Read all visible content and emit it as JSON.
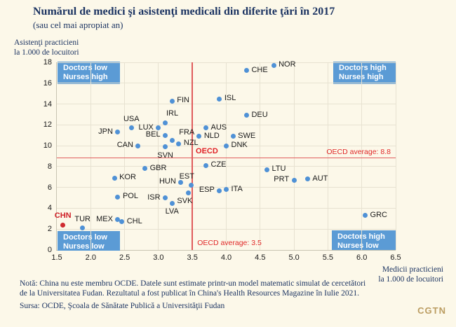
{
  "header": {
    "title": "Numărul de medici şi asistenţi medicali din diferite ţări în 2017",
    "subtitle": "(sau cel mai apropiat an)"
  },
  "axes": {
    "y_title_line1": "Asistenţi practicieni",
    "y_title_line2": "la 1.000 de locuitori",
    "x_title_line1": "Medicii practicieni",
    "x_title_line2": "la 1.000 de locuitori"
  },
  "footer": {
    "note_line1": "Notă: China nu este membru OCDE. Datele sunt estimate printr-un model matematic simulat de cercetători",
    "note_line2": "de la Universitatea Fudan. Rezultatul a fost publicat în China's Health Resources Magazine în Iulie 2021.",
    "source": "Sursa: OCDE, Şcoala de Sănătate Publică a Universităţii Fudan",
    "logo": "CGTN"
  },
  "colors": {
    "background": "#fcf8e9",
    "point_blue": "#4f91d6",
    "quadrant_blue": "#5b9bd5",
    "highlight_red": "#cf2b31",
    "reference_red": "#e05c5c",
    "title_navy": "#1c3462",
    "gold": "#bb9d62",
    "grid": "#e7e2d1"
  },
  "chart_data": {
    "type": "scatter",
    "title": "Numărul de medici şi asistenţi medicali din diferite ţări în 2017 (sau cel mai apropiat an)",
    "xlabel": "Medicii practicieni la 1.000 de locuitori",
    "ylabel": "Asistenţi practicieni la 1.000 de locuitori",
    "xlim": [
      1.5,
      6.5
    ],
    "ylim": [
      0,
      18
    ],
    "x_ticks": [
      1.5,
      2.0,
      2.5,
      3.0,
      3.5,
      4.0,
      4.5,
      5.0,
      5.5,
      6.0,
      6.5
    ],
    "y_ticks": [
      0,
      2,
      4,
      6,
      8,
      10,
      12,
      14,
      16,
      18
    ],
    "grid": true,
    "legend": "none",
    "reference_lines": {
      "h": {
        "value": 8.8,
        "label": "OECD average: 8.8"
      },
      "v": {
        "value": 3.5,
        "label": "OECD average: 3.5"
      }
    },
    "annotation": {
      "label": "OECD",
      "x": 3.55,
      "y": 9.4
    },
    "quadrants": {
      "tl": {
        "line1": "Doctors low",
        "line2": "Nurses high"
      },
      "tr": {
        "line1": "Doctors high",
        "line2": "Nurses high"
      },
      "bl": {
        "line1": "Doctors low",
        "line2": "Nurses low"
      },
      "br": {
        "line1": "Doctors high",
        "line2": "Nurses low"
      }
    },
    "points": [
      {
        "label": "NOR",
        "x": 4.7,
        "y": 17.7,
        "label_pos": "right"
      },
      {
        "label": "CHE",
        "x": 4.3,
        "y": 17.2,
        "label_pos": "right"
      },
      {
        "label": "ISL",
        "x": 3.9,
        "y": 14.5,
        "label_pos": "right"
      },
      {
        "label": "FIN",
        "x": 3.2,
        "y": 14.3,
        "label_pos": "right"
      },
      {
        "label": "DEU",
        "x": 4.3,
        "y": 12.9,
        "label_pos": "right"
      },
      {
        "label": "IRL",
        "x": 3.1,
        "y": 12.2,
        "label_pos": "above",
        "dx": 10
      },
      {
        "label": "USA",
        "x": 2.6,
        "y": 11.7,
        "label_pos": "above"
      },
      {
        "label": "LUX",
        "x": 3.0,
        "y": 11.7,
        "label_pos": "left"
      },
      {
        "label": "AUS",
        "x": 3.7,
        "y": 11.7,
        "label_pos": "right"
      },
      {
        "label": "JPN",
        "x": 2.4,
        "y": 11.3,
        "label_pos": "left"
      },
      {
        "label": "BEL",
        "x": 3.1,
        "y": 11.0,
        "label_pos": "left"
      },
      {
        "label": "NLD",
        "x": 3.6,
        "y": 10.9,
        "label_pos": "right"
      },
      {
        "label": "SWE",
        "x": 4.1,
        "y": 10.9,
        "label_pos": "right"
      },
      {
        "label": "FRA",
        "x": 3.2,
        "y": 10.5,
        "label_pos": "right",
        "dx": 3,
        "dy": -11
      },
      {
        "label": "NZL",
        "x": 3.3,
        "y": 10.2,
        "label_pos": "right"
      },
      {
        "label": "CAN",
        "x": 2.7,
        "y": 10.0,
        "label_pos": "left"
      },
      {
        "label": "DNK",
        "x": 4.0,
        "y": 10.0,
        "label_pos": "right"
      },
      {
        "label": "SVN",
        "x": 3.1,
        "y": 9.9,
        "label_pos": "below"
      },
      {
        "label": "CZE",
        "x": 3.7,
        "y": 8.1,
        "label_pos": "right"
      },
      {
        "label": "GBR",
        "x": 2.8,
        "y": 7.8,
        "label_pos": "right"
      },
      {
        "label": "LTU",
        "x": 4.6,
        "y": 7.7,
        "label_pos": "right"
      },
      {
        "label": "KOR",
        "x": 2.35,
        "y": 6.9,
        "label_pos": "right"
      },
      {
        "label": "AUT",
        "x": 5.2,
        "y": 6.8,
        "label_pos": "right"
      },
      {
        "label": "PRT",
        "x": 5.0,
        "y": 6.7,
        "label_pos": "left"
      },
      {
        "label": "HUN",
        "x": 3.33,
        "y": 6.5,
        "label_pos": "left"
      },
      {
        "label": "EST",
        "x": 3.48,
        "y": 6.2,
        "label_pos": "above",
        "dx": -6
      },
      {
        "label": "ITA",
        "x": 4.0,
        "y": 5.8,
        "label_pos": "right"
      },
      {
        "label": "ESP",
        "x": 3.9,
        "y": 5.7,
        "label_pos": "left"
      },
      {
        "label": "SVK",
        "x": 3.44,
        "y": 5.5,
        "label_pos": "below",
        "dx": -5
      },
      {
        "label": "POL",
        "x": 2.4,
        "y": 5.1,
        "label_pos": "right"
      },
      {
        "label": "ISR",
        "x": 3.1,
        "y": 5.0,
        "label_pos": "left"
      },
      {
        "label": "LVA",
        "x": 3.2,
        "y": 4.5,
        "label_pos": "below"
      },
      {
        "label": "GRC",
        "x": 6.05,
        "y": 3.3,
        "label_pos": "right"
      },
      {
        "label": "MEX",
        "x": 2.4,
        "y": 2.9,
        "label_pos": "left"
      },
      {
        "label": "CHL",
        "x": 2.46,
        "y": 2.7,
        "label_pos": "right"
      },
      {
        "label": "TUR",
        "x": 1.88,
        "y": 2.1,
        "label_pos": "above"
      },
      {
        "label": "CHN",
        "x": 1.59,
        "y": 2.4,
        "label_pos": "above",
        "highlight": true
      }
    ]
  }
}
